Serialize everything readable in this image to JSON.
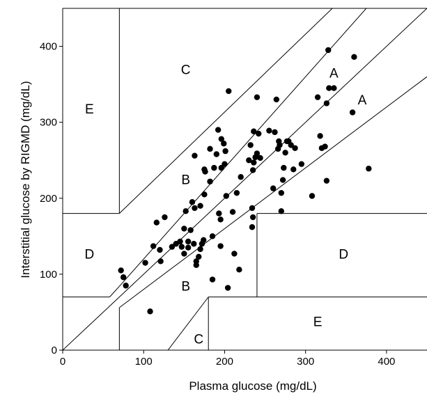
{
  "chart_data": {
    "type": "scatter",
    "xlabel": "Plasma glucose (mg/dL)",
    "ylabel": "Interstitial glucose by RIGMD (mg/dL)",
    "xlim": [
      0,
      450
    ],
    "ylim": [
      0,
      450
    ],
    "xticks": [
      "0",
      "100",
      "200",
      "300",
      "400"
    ],
    "yticks": [
      "0",
      "100",
      "200",
      "300",
      "400"
    ],
    "grid": false,
    "legend": "none",
    "colors": {
      "points": "#000000",
      "lines": "#000000",
      "frame": "#000000"
    },
    "zone_labels": [
      {
        "text": "A",
        "x": 335,
        "y": 365
      },
      {
        "text": "A",
        "x": 370,
        "y": 330
      },
      {
        "text": "B",
        "x": 152,
        "y": 225
      },
      {
        "text": "B",
        "x": 152,
        "y": 85
      },
      {
        "text": "C",
        "x": 152,
        "y": 370
      },
      {
        "text": "C",
        "x": 168,
        "y": 15
      },
      {
        "text": "D",
        "x": 33,
        "y": 127
      },
      {
        "text": "D",
        "x": 347,
        "y": 127
      },
      {
        "text": "E",
        "x": 33,
        "y": 318
      },
      {
        "text": "E",
        "x": 315,
        "y": 38
      }
    ],
    "zone_boundaries": [
      [
        [
          0,
          0
        ],
        [
          450,
          450
        ]
      ],
      [
        [
          70,
          84
        ],
        [
          450,
          540
        ]
      ],
      [
        [
          70,
          56
        ],
        [
          450,
          360
        ]
      ],
      [
        [
          70,
          180
        ],
        [
          450,
          570
        ]
      ],
      [
        [
          70,
          180
        ],
        [
          70,
          450
        ]
      ],
      [
        [
          0,
          180
        ],
        [
          70,
          180
        ]
      ],
      [
        [
          0,
          70
        ],
        [
          58,
          70
        ]
      ],
      [
        [
          58,
          70
        ],
        [
          70,
          84
        ]
      ],
      [
        [
          70,
          56
        ],
        [
          70,
          0
        ]
      ],
      [
        [
          240,
          180
        ],
        [
          450,
          180
        ]
      ],
      [
        [
          240,
          180
        ],
        [
          240,
          70
        ]
      ],
      [
        [
          180,
          70
        ],
        [
          450,
          70
        ]
      ],
      [
        [
          180,
          70
        ],
        [
          180,
          0
        ]
      ],
      [
        [
          130,
          0
        ],
        [
          180,
          70
        ]
      ]
    ],
    "points": [
      [
        72,
        105
      ],
      [
        75,
        96
      ],
      [
        78,
        85
      ],
      [
        102,
        115
      ],
      [
        108,
        51
      ],
      [
        112,
        137
      ],
      [
        116,
        168
      ],
      [
        120,
        132
      ],
      [
        121,
        117
      ],
      [
        126,
        175
      ],
      [
        135,
        136
      ],
      [
        140,
        140
      ],
      [
        145,
        143
      ],
      [
        147,
        136
      ],
      [
        150,
        160
      ],
      [
        150,
        127
      ],
      [
        152,
        183
      ],
      [
        155,
        143
      ],
      [
        155,
        135
      ],
      [
        158,
        158
      ],
      [
        160,
        195
      ],
      [
        162,
        140
      ],
      [
        163,
        256
      ],
      [
        163,
        187
      ],
      [
        165,
        112
      ],
      [
        165,
        117
      ],
      [
        168,
        123
      ],
      [
        170,
        133
      ],
      [
        170,
        190
      ],
      [
        172,
        140
      ],
      [
        174,
        145
      ],
      [
        175,
        205
      ],
      [
        175,
        238
      ],
      [
        176,
        235
      ],
      [
        182,
        222
      ],
      [
        182,
        265
      ],
      [
        185,
        150
      ],
      [
        185,
        93
      ],
      [
        187,
        240
      ],
      [
        190,
        258
      ],
      [
        192,
        290
      ],
      [
        193,
        180
      ],
      [
        195,
        137
      ],
      [
        195,
        172
      ],
      [
        196,
        240
      ],
      [
        196,
        278
      ],
      [
        199,
        272
      ],
      [
        200,
        245
      ],
      [
        201,
        262
      ],
      [
        202,
        203
      ],
      [
        204,
        82
      ],
      [
        205,
        341
      ],
      [
        210,
        182
      ],
      [
        212,
        127
      ],
      [
        215,
        207
      ],
      [
        218,
        106
      ],
      [
        220,
        228
      ],
      [
        230,
        250
      ],
      [
        232,
        270
      ],
      [
        234,
        187
      ],
      [
        234,
        162
      ],
      [
        235,
        175
      ],
      [
        235,
        237
      ],
      [
        236,
        247
      ],
      [
        236,
        288
      ],
      [
        238,
        254
      ],
      [
        240,
        259
      ],
      [
        240,
        333
      ],
      [
        242,
        285
      ],
      [
        244,
        253
      ],
      [
        255,
        289
      ],
      [
        260,
        213
      ],
      [
        262,
        287
      ],
      [
        264,
        330
      ],
      [
        266,
        265
      ],
      [
        267,
        275
      ],
      [
        268,
        270
      ],
      [
        270,
        207
      ],
      [
        270,
        183
      ],
      [
        272,
        224
      ],
      [
        273,
        240
      ],
      [
        275,
        260
      ],
      [
        277,
        275
      ],
      [
        279,
        275
      ],
      [
        282,
        270
      ],
      [
        285,
        238
      ],
      [
        287,
        266
      ],
      [
        295,
        245
      ],
      [
        308,
        203
      ],
      [
        315,
        333
      ],
      [
        318,
        282
      ],
      [
        320,
        266
      ],
      [
        324,
        268
      ],
      [
        326,
        325
      ],
      [
        326,
        223
      ],
      [
        328,
        395
      ],
      [
        329,
        345
      ],
      [
        335,
        345
      ],
      [
        358,
        313
      ],
      [
        360,
        386
      ],
      [
        378,
        239
      ]
    ]
  }
}
